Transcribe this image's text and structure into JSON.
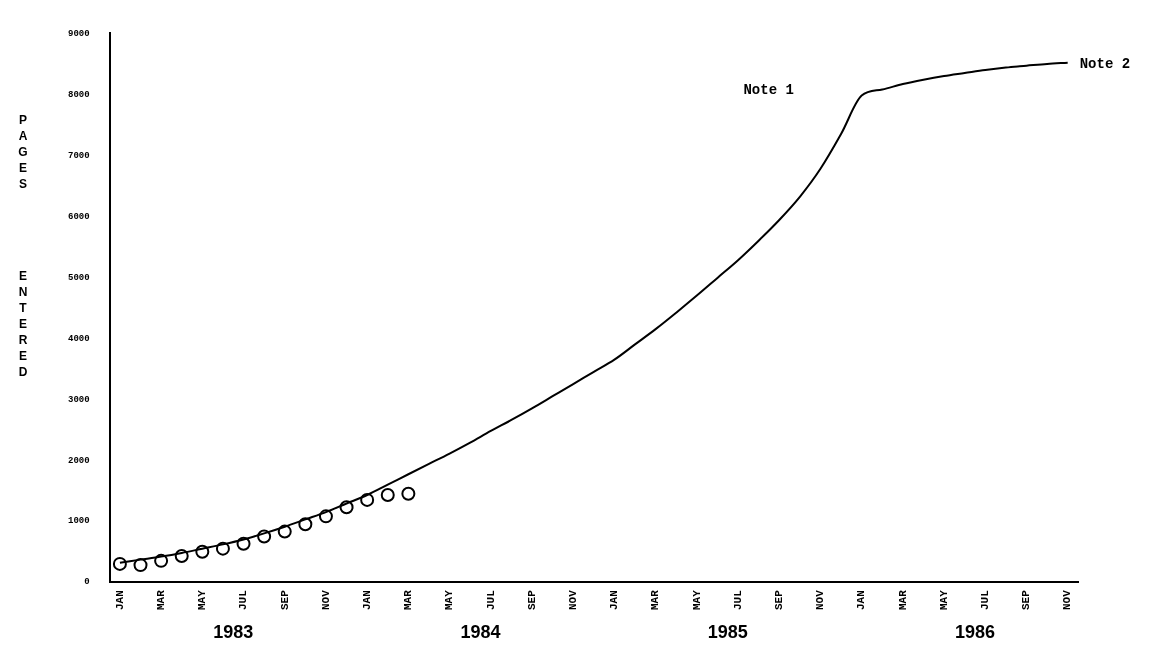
{
  "chart_data": {
    "type": "line",
    "ylabel": "PAGES ENTERED",
    "categories": [
      "JAN",
      null,
      "MAR",
      null,
      "MAY",
      null,
      "JUL",
      null,
      "SEP",
      null,
      "NOV",
      null,
      "JAN",
      null,
      "MAR",
      null,
      "MAY",
      null,
      "JUL",
      null,
      "SEP",
      null,
      "NOV",
      null,
      "JAN",
      null,
      "MAR",
      null,
      "MAY",
      null,
      "JUL",
      null,
      "SEP",
      null,
      "NOV",
      null,
      "JAN",
      null,
      "MAR",
      null,
      "MAY",
      null,
      "JUL",
      null,
      "SEP",
      null,
      "NOV"
    ],
    "series": [
      {
        "color": "#000000",
        "marker": "none",
        "values": [
          320,
          370,
          420,
          480,
          550,
          620,
          700,
          800,
          910,
          1030,
          1150,
          1290,
          1430,
          1600,
          1770,
          1940,
          2110,
          2290,
          2480,
          2660,
          2850,
          3050,
          3250,
          3450,
          3650,
          3900,
          4150,
          4420,
          4700,
          4990,
          5280,
          5600,
          5940,
          6320,
          6780,
          7350,
          7980,
          8080,
          8170,
          8240,
          8300,
          8350,
          8400,
          8440,
          8470,
          8500,
          8520
        ]
      },
      {
        "type": "scatter",
        "color": "#000000",
        "marker": "circle",
        "values": [
          300,
          280,
          350,
          430,
          500,
          550,
          630,
          750,
          830,
          950,
          1080,
          1230,
          1350,
          1430,
          1450,
          null,
          null,
          null,
          null,
          null,
          null,
          null,
          null,
          null,
          null,
          null,
          null,
          null,
          null,
          null,
          null,
          null,
          null,
          null,
          null,
          null,
          null,
          null,
          null,
          null,
          null,
          null,
          null,
          null,
          null,
          null,
          null
        ]
      }
    ],
    "ylim": [
      0,
      9000
    ],
    "yticks": [
      0,
      1000,
      2000,
      3000,
      4000,
      5000,
      6000,
      7000,
      8000,
      9000
    ],
    "annotations": [
      "1983",
      "1984",
      "1985",
      "1986",
      "Note 1",
      "Note 2"
    ],
    "grid": false,
    "legend": false
  }
}
